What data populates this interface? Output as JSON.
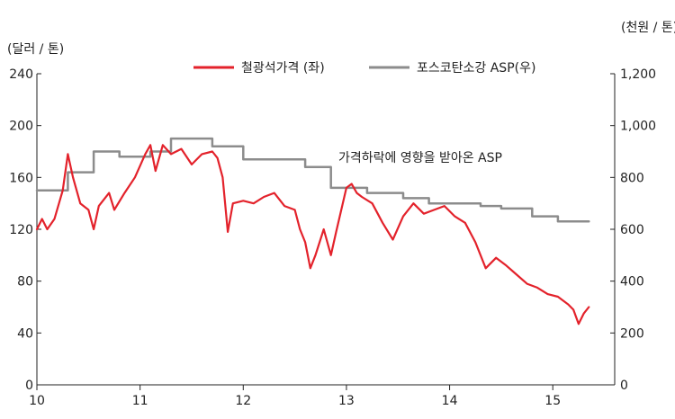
{
  "chart_data": {
    "type": "line",
    "left_unit": "(달러 / 톤)",
    "right_unit": "(천원 / 톤)",
    "annotation": "가격하락에 영향을 받아온 ASP",
    "x_ticks": [
      "10",
      "11",
      "12",
      "13",
      "14",
      "15"
    ],
    "x_tick_values": [
      10,
      11,
      12,
      13,
      14,
      15
    ],
    "xlim": [
      10,
      15.6
    ],
    "ylim_left": [
      0,
      240
    ],
    "yticks_left": [
      "0",
      "40",
      "80",
      "120",
      "160",
      "200",
      "240"
    ],
    "yticks_left_values": [
      0,
      40,
      80,
      120,
      160,
      200,
      240
    ],
    "ylim_right": [
      0,
      1200
    ],
    "yticks_right": [
      "0",
      "200",
      "400",
      "600",
      "800",
      "1,000",
      "1,200"
    ],
    "yticks_right_values": [
      0,
      200,
      400,
      600,
      800,
      1000,
      1200
    ],
    "legend_placement": "top",
    "grid": false,
    "series": [
      {
        "name": "철광석가격 (좌)",
        "axis": "left",
        "color": "#e3222b",
        "points": [
          [
            10.0,
            120
          ],
          [
            10.05,
            128
          ],
          [
            10.1,
            120
          ],
          [
            10.17,
            128
          ],
          [
            10.25,
            150
          ],
          [
            10.3,
            178
          ],
          [
            10.35,
            160
          ],
          [
            10.42,
            140
          ],
          [
            10.5,
            135
          ],
          [
            10.55,
            120
          ],
          [
            10.6,
            138
          ],
          [
            10.7,
            148
          ],
          [
            10.75,
            135
          ],
          [
            10.85,
            148
          ],
          [
            10.95,
            160
          ],
          [
            11.05,
            178
          ],
          [
            11.1,
            185
          ],
          [
            11.15,
            165
          ],
          [
            11.22,
            185
          ],
          [
            11.3,
            178
          ],
          [
            11.4,
            182
          ],
          [
            11.5,
            170
          ],
          [
            11.6,
            178
          ],
          [
            11.7,
            180
          ],
          [
            11.75,
            175
          ],
          [
            11.8,
            160
          ],
          [
            11.85,
            118
          ],
          [
            11.9,
            140
          ],
          [
            12.0,
            142
          ],
          [
            12.1,
            140
          ],
          [
            12.2,
            145
          ],
          [
            12.3,
            148
          ],
          [
            12.4,
            138
          ],
          [
            12.5,
            135
          ],
          [
            12.55,
            120
          ],
          [
            12.6,
            110
          ],
          [
            12.65,
            90
          ],
          [
            12.7,
            100
          ],
          [
            12.78,
            120
          ],
          [
            12.85,
            100
          ],
          [
            12.9,
            118
          ],
          [
            13.0,
            152
          ],
          [
            13.05,
            155
          ],
          [
            13.1,
            148
          ],
          [
            13.15,
            145
          ],
          [
            13.25,
            140
          ],
          [
            13.35,
            125
          ],
          [
            13.45,
            112
          ],
          [
            13.55,
            130
          ],
          [
            13.65,
            140
          ],
          [
            13.75,
            132
          ],
          [
            13.85,
            135
          ],
          [
            13.95,
            138
          ],
          [
            14.05,
            130
          ],
          [
            14.15,
            125
          ],
          [
            14.25,
            110
          ],
          [
            14.35,
            90
          ],
          [
            14.45,
            98
          ],
          [
            14.55,
            92
          ],
          [
            14.65,
            85
          ],
          [
            14.75,
            78
          ],
          [
            14.85,
            75
          ],
          [
            14.95,
            70
          ],
          [
            15.05,
            68
          ],
          [
            15.15,
            62
          ],
          [
            15.2,
            58
          ],
          [
            15.25,
            47
          ],
          [
            15.3,
            55
          ],
          [
            15.35,
            60
          ]
        ]
      },
      {
        "name": "포스코탄소강 ASP(우)",
        "axis": "right",
        "color": "#8c8c8c",
        "points": [
          [
            10.0,
            750
          ],
          [
            10.3,
            750
          ],
          [
            10.3,
            820
          ],
          [
            10.55,
            820
          ],
          [
            10.55,
            900
          ],
          [
            10.8,
            900
          ],
          [
            10.8,
            880
          ],
          [
            11.1,
            880
          ],
          [
            11.1,
            900
          ],
          [
            11.3,
            900
          ],
          [
            11.3,
            950
          ],
          [
            11.7,
            950
          ],
          [
            11.7,
            920
          ],
          [
            12.0,
            920
          ],
          [
            12.0,
            870
          ],
          [
            12.6,
            870
          ],
          [
            12.6,
            840
          ],
          [
            12.85,
            840
          ],
          [
            12.85,
            760
          ],
          [
            13.2,
            760
          ],
          [
            13.2,
            740
          ],
          [
            13.55,
            740
          ],
          [
            13.55,
            720
          ],
          [
            13.8,
            720
          ],
          [
            13.8,
            700
          ],
          [
            14.05,
            700
          ],
          [
            14.05,
            700
          ],
          [
            14.3,
            700
          ],
          [
            14.3,
            690
          ],
          [
            14.5,
            690
          ],
          [
            14.5,
            680
          ],
          [
            14.8,
            680
          ],
          [
            14.8,
            650
          ],
          [
            15.05,
            650
          ],
          [
            15.05,
            630
          ],
          [
            15.35,
            630
          ]
        ]
      }
    ]
  }
}
